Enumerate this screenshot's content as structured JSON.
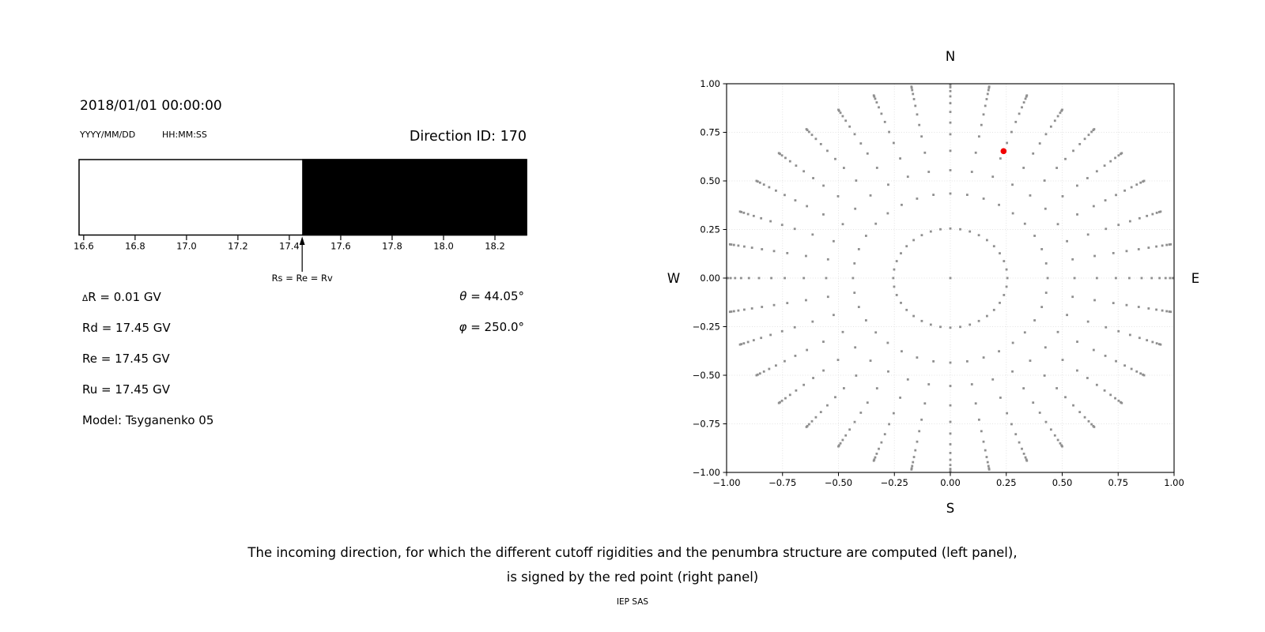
{
  "header": {
    "datetime": "2018/01/01 00:00:00",
    "date_format": "YYYY/MM/DD",
    "time_format": "HH:MM:SS",
    "direction_id": "Direction ID: 170"
  },
  "info": {
    "delta_symbol": "Δ",
    "delta_rest": "R = 0.01 GV",
    "rd": "Rd = 17.45 GV",
    "re": "Re = 17.45 GV",
    "ru": "Ru = 17.45 GV",
    "model": "Model: Tsyganenko 05",
    "theta_symbol": "θ",
    "theta_rest": " = 44.05°",
    "phi_symbol": "φ",
    "phi_rest": " = 250.0°"
  },
  "caption": {
    "line1": "The incoming direction, for which the different cutoff rigidities and the penumbra structure are computed (left panel),",
    "line2": "is signed by the red point (right panel)",
    "credit": "IEP SAS"
  },
  "chart_data": [
    {
      "type": "bar",
      "title": "penumbra structure strip",
      "x_range": [
        16.582,
        18.323
      ],
      "tick_values": [
        16.6,
        16.8,
        17.0,
        17.2,
        17.4,
        17.6,
        17.8,
        18.0,
        18.2
      ],
      "tick_labels": [
        "16.6",
        "16.8",
        "17.0",
        "17.2",
        "17.4",
        "17.6",
        "17.8",
        "18.0",
        "18.2"
      ],
      "allowed_region": {
        "from": 16.582,
        "to": 17.45,
        "color": "#ffffff"
      },
      "forbidden_region": {
        "from": 17.45,
        "to": 18.323,
        "color": "#000000"
      },
      "arrow": {
        "value": 17.45,
        "label": "Rs = Re = Rv"
      }
    },
    {
      "type": "scatter",
      "title": "incoming direction grid",
      "xlim": [
        -1,
        1
      ],
      "ylim": [
        -1,
        1
      ],
      "grid": true,
      "x_tick_values": [
        -1.0,
        -0.75,
        -0.5,
        -0.25,
        0.0,
        0.25,
        0.5,
        0.75,
        1.0
      ],
      "x_tick_labels": [
        "−1.00",
        "−0.75",
        "−0.50",
        "−0.25",
        "0.00",
        "0.25",
        "0.50",
        "0.75",
        "1.00"
      ],
      "y_tick_values": [
        1.0,
        0.75,
        0.5,
        0.25,
        0.0,
        -0.25,
        -0.5,
        -0.75,
        -1.0
      ],
      "y_tick_labels": [
        "1.00",
        "0.75",
        "0.50",
        "0.25",
        "0.00",
        "−0.25",
        "−0.50",
        "−0.75",
        "−1.00"
      ],
      "compass_labels": {
        "top": "N",
        "bottom": "S",
        "left": "W",
        "right": "E"
      },
      "direction_grid": {
        "azimuth_start_deg": 0,
        "azimuth_step_deg": 10,
        "azimuth_count": 36,
        "ring_radii": [
          0.255,
          0.435,
          0.555,
          0.655,
          0.74,
          0.8,
          0.855,
          0.9,
          0.935,
          0.962,
          0.982,
          0.994,
          1.0
        ],
        "center_dot": true,
        "dot_color": "#8f8f8f",
        "dot_size_px": 2.8
      },
      "red_point": {
        "x": 0.238,
        "y": 0.653,
        "color": "#f20000",
        "radius_px": 3.8
      }
    }
  ]
}
